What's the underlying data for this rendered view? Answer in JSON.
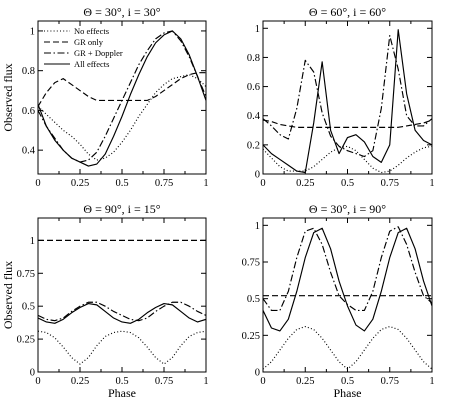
{
  "chart_data": [
    {
      "type": "line",
      "title": "Θ = 30°, i = 30°",
      "xlabel": "",
      "ylabel": "Observed flux",
      "xlim": [
        0,
        1
      ],
      "ylim": [
        0.28,
        1.05
      ],
      "xticks": [
        "0",
        "0.25",
        "0.5",
        "0.75",
        "1"
      ],
      "yticks": [
        0.4,
        0.6,
        0.8,
        1
      ],
      "ytick_labels": [
        "0.4",
        "0.6",
        "0.8",
        "1"
      ],
      "legend": {
        "placement": "top-left",
        "entries": [
          "No effects",
          "GR only",
          "GR + Doppler",
          "All effects"
        ]
      },
      "series": [
        {
          "name": "No effects",
          "style": "dotted",
          "x": [
            0,
            0.05,
            0.1,
            0.15,
            0.2,
            0.25,
            0.3,
            0.35,
            0.4,
            0.45,
            0.5,
            0.55,
            0.6,
            0.65,
            0.7,
            0.75,
            0.8,
            0.85,
            0.9,
            0.95,
            1
          ],
          "y": [
            0.62,
            0.58,
            0.54,
            0.5,
            0.47,
            0.43,
            0.38,
            0.35,
            0.36,
            0.39,
            0.44,
            0.5,
            0.57,
            0.63,
            0.69,
            0.73,
            0.76,
            0.77,
            0.78,
            0.76,
            0.72
          ]
        },
        {
          "name": "GR only",
          "style": "dashed",
          "x": [
            0,
            0.05,
            0.1,
            0.15,
            0.2,
            0.25,
            0.3,
            0.35,
            0.4,
            0.45,
            0.5,
            0.55,
            0.6,
            0.65,
            0.7,
            0.75,
            0.8,
            0.85,
            0.9,
            0.95,
            1
          ],
          "y": [
            0.62,
            0.69,
            0.74,
            0.76,
            0.73,
            0.7,
            0.67,
            0.65,
            0.65,
            0.65,
            0.65,
            0.65,
            0.65,
            0.65,
            0.67,
            0.7,
            0.73,
            0.76,
            0.78,
            0.79,
            0.79
          ]
        },
        {
          "name": "GR + Doppler",
          "style": "dashdot",
          "x": [
            0,
            0.05,
            0.1,
            0.15,
            0.2,
            0.25,
            0.3,
            0.35,
            0.4,
            0.45,
            0.5,
            0.55,
            0.6,
            0.65,
            0.7,
            0.75,
            0.8,
            0.85,
            0.9,
            0.95,
            1
          ],
          "y": [
            0.6,
            0.52,
            0.46,
            0.4,
            0.36,
            0.34,
            0.35,
            0.39,
            0.47,
            0.56,
            0.65,
            0.74,
            0.83,
            0.9,
            0.96,
            0.99,
            1.0,
            0.95,
            0.87,
            0.77,
            0.67
          ]
        },
        {
          "name": "All effects",
          "style": "solid",
          "x": [
            0,
            0.05,
            0.1,
            0.15,
            0.2,
            0.25,
            0.3,
            0.35,
            0.4,
            0.45,
            0.5,
            0.55,
            0.6,
            0.65,
            0.7,
            0.75,
            0.8,
            0.85,
            0.9,
            0.95,
            1
          ],
          "y": [
            0.63,
            0.52,
            0.45,
            0.4,
            0.36,
            0.34,
            0.32,
            0.33,
            0.38,
            0.47,
            0.57,
            0.68,
            0.78,
            0.87,
            0.94,
            0.98,
            1.0,
            0.96,
            0.88,
            0.77,
            0.65
          ]
        }
      ]
    },
    {
      "type": "line",
      "title": "Θ = 60°, i = 60°",
      "xlabel": "",
      "ylabel": "",
      "xlim": [
        0,
        1
      ],
      "ylim": [
        0,
        1.05
      ],
      "xticks": [
        "0",
        "0.25",
        "0.5",
        "0.75",
        "1"
      ],
      "yticks": [
        0,
        0.2,
        0.4,
        0.6,
        0.8,
        1
      ],
      "ytick_labels": [
        "0",
        "0.2",
        "0.4",
        "0.6",
        "0.8",
        "1"
      ],
      "series": [
        {
          "name": "No effects",
          "style": "dotted",
          "x": [
            0,
            0.05,
            0.1,
            0.15,
            0.2,
            0.25,
            0.3,
            0.35,
            0.4,
            0.45,
            0.5,
            0.55,
            0.6,
            0.65,
            0.7,
            0.75,
            0.8,
            0.85,
            0.9,
            0.95,
            1
          ],
          "y": [
            0.17,
            0.11,
            0.05,
            0.02,
            0.02,
            0.02,
            0.05,
            0.1,
            0.15,
            0.18,
            0.19,
            0.16,
            0.1,
            0.04,
            0.01,
            0.02,
            0.06,
            0.11,
            0.15,
            0.18,
            0.19
          ]
        },
        {
          "name": "GR only",
          "style": "dashed",
          "x": [
            0,
            0.05,
            0.1,
            0.15,
            0.2,
            0.25,
            0.3,
            0.35,
            0.4,
            0.45,
            0.5,
            0.55,
            0.6,
            0.65,
            0.7,
            0.75,
            0.8,
            0.85,
            0.9,
            0.95,
            1
          ],
          "y": [
            0.37,
            0.36,
            0.34,
            0.33,
            0.32,
            0.32,
            0.32,
            0.32,
            0.32,
            0.32,
            0.32,
            0.32,
            0.32,
            0.32,
            0.32,
            0.32,
            0.32,
            0.33,
            0.34,
            0.35,
            0.37
          ]
        },
        {
          "name": "GR + Doppler",
          "style": "dashdot",
          "x": [
            0,
            0.05,
            0.1,
            0.15,
            0.2,
            0.25,
            0.3,
            0.35,
            0.4,
            0.45,
            0.5,
            0.55,
            0.6,
            0.65,
            0.7,
            0.75,
            0.8,
            0.85,
            0.9,
            0.95,
            1
          ],
          "y": [
            0.38,
            0.33,
            0.27,
            0.24,
            0.45,
            0.78,
            0.7,
            0.42,
            0.26,
            0.19,
            0.16,
            0.14,
            0.12,
            0.16,
            0.45,
            0.95,
            0.72,
            0.4,
            0.33,
            0.33,
            0.38
          ]
        },
        {
          "name": "All effects",
          "style": "solid",
          "x": [
            0,
            0.05,
            0.1,
            0.15,
            0.2,
            0.25,
            0.3,
            0.35,
            0.4,
            0.45,
            0.5,
            0.55,
            0.6,
            0.65,
            0.7,
            0.75,
            0.8,
            0.85,
            0.9,
            0.95,
            1
          ],
          "y": [
            0.2,
            0.14,
            0.1,
            0.06,
            0.02,
            0.01,
            0.35,
            0.77,
            0.3,
            0.14,
            0.25,
            0.27,
            0.22,
            0.12,
            0.08,
            0.2,
            0.99,
            0.55,
            0.3,
            0.23,
            0.2
          ]
        }
      ]
    },
    {
      "type": "line",
      "title": "Θ = 90°, i = 15°",
      "xlabel": "Phase",
      "ylabel": "Observed flux",
      "xlim": [
        0,
        1
      ],
      "ylim": [
        0,
        1.17
      ],
      "xticks": [
        "0",
        "0.25",
        "0.5",
        "0.75",
        "1"
      ],
      "yticks": [
        0,
        0.25,
        0.5,
        0.75,
        1
      ],
      "ytick_labels": [
        "0",
        "0.25",
        "0.5",
        "0.75",
        "1"
      ],
      "series": [
        {
          "name": "No effects",
          "style": "dotted",
          "x": [
            0,
            0.05,
            0.1,
            0.15,
            0.2,
            0.25,
            0.3,
            0.35,
            0.4,
            0.45,
            0.5,
            0.55,
            0.6,
            0.65,
            0.7,
            0.75,
            0.8,
            0.85,
            0.9,
            0.95,
            1
          ],
          "y": [
            0.31,
            0.3,
            0.26,
            0.19,
            0.11,
            0.06,
            0.11,
            0.2,
            0.27,
            0.3,
            0.31,
            0.3,
            0.26,
            0.19,
            0.11,
            0.06,
            0.11,
            0.2,
            0.27,
            0.3,
            0.31
          ]
        },
        {
          "name": "GR only",
          "style": "dashed",
          "x": [
            0,
            1
          ],
          "y": [
            1,
            1
          ]
        },
        {
          "name": "GR + Doppler",
          "style": "dashdot",
          "x": [
            0,
            0.05,
            0.1,
            0.15,
            0.2,
            0.25,
            0.3,
            0.35,
            0.4,
            0.45,
            0.5,
            0.55,
            0.6,
            0.65,
            0.7,
            0.75,
            0.8,
            0.85,
            0.9,
            0.95,
            1
          ],
          "y": [
            0.43,
            0.4,
            0.39,
            0.41,
            0.46,
            0.5,
            0.53,
            0.53,
            0.5,
            0.46,
            0.43,
            0.4,
            0.39,
            0.41,
            0.46,
            0.5,
            0.53,
            0.53,
            0.5,
            0.46,
            0.43
          ]
        },
        {
          "name": "All effects",
          "style": "solid",
          "x": [
            0,
            0.05,
            0.1,
            0.15,
            0.2,
            0.25,
            0.3,
            0.35,
            0.4,
            0.45,
            0.5,
            0.55,
            0.6,
            0.65,
            0.7,
            0.75,
            0.8,
            0.85,
            0.9,
            0.95,
            1
          ],
          "y": [
            0.41,
            0.38,
            0.37,
            0.4,
            0.45,
            0.49,
            0.52,
            0.51,
            0.46,
            0.41,
            0.38,
            0.37,
            0.4,
            0.45,
            0.49,
            0.52,
            0.51,
            0.46,
            0.41,
            0.38,
            0.4
          ]
        }
      ]
    },
    {
      "type": "line",
      "title": "Θ = 30°, i = 90°",
      "xlabel": "Phase",
      "ylabel": "",
      "xlim": [
        0,
        1
      ],
      "ylim": [
        0,
        1.05
      ],
      "xticks": [
        "0",
        "0.25",
        "0.5",
        "0.75",
        "1"
      ],
      "yticks": [
        0,
        0.25,
        0.5,
        0.75,
        1
      ],
      "ytick_labels": [
        "0",
        "0.25",
        "0.5",
        "0.75",
        "1"
      ],
      "series": [
        {
          "name": "No effects",
          "style": "dotted",
          "x": [
            0,
            0.05,
            0.1,
            0.15,
            0.2,
            0.25,
            0.3,
            0.35,
            0.4,
            0.45,
            0.5,
            0.55,
            0.6,
            0.65,
            0.7,
            0.75,
            0.8,
            0.85,
            0.9,
            0.95,
            1
          ],
          "y": [
            0.02,
            0.07,
            0.15,
            0.23,
            0.29,
            0.31,
            0.29,
            0.23,
            0.15,
            0.07,
            0.02,
            0.07,
            0.15,
            0.23,
            0.29,
            0.31,
            0.29,
            0.23,
            0.15,
            0.07,
            0.02
          ]
        },
        {
          "name": "GR only",
          "style": "dashed",
          "x": [
            0,
            1
          ],
          "y": [
            0.52,
            0.52
          ]
        },
        {
          "name": "GR + Doppler",
          "style": "dashdot",
          "x": [
            0,
            0.05,
            0.1,
            0.15,
            0.2,
            0.25,
            0.3,
            0.35,
            0.4,
            0.45,
            0.5,
            0.55,
            0.6,
            0.65,
            0.7,
            0.75,
            0.8,
            0.85,
            0.9,
            0.95,
            1
          ],
          "y": [
            0.5,
            0.42,
            0.42,
            0.55,
            0.78,
            0.96,
            0.98,
            0.87,
            0.68,
            0.52,
            0.46,
            0.42,
            0.42,
            0.55,
            0.78,
            0.96,
            0.99,
            0.87,
            0.68,
            0.52,
            0.47
          ]
        },
        {
          "name": "All effects",
          "style": "solid",
          "x": [
            0,
            0.05,
            0.1,
            0.15,
            0.2,
            0.25,
            0.3,
            0.35,
            0.4,
            0.45,
            0.5,
            0.55,
            0.6,
            0.65,
            0.7,
            0.75,
            0.8,
            0.85,
            0.9,
            0.95,
            1
          ],
          "y": [
            0.42,
            0.3,
            0.28,
            0.36,
            0.55,
            0.78,
            0.95,
            0.98,
            0.84,
            0.62,
            0.45,
            0.32,
            0.28,
            0.36,
            0.55,
            0.78,
            0.95,
            0.98,
            0.84,
            0.62,
            0.45
          ]
        }
      ]
    }
  ]
}
